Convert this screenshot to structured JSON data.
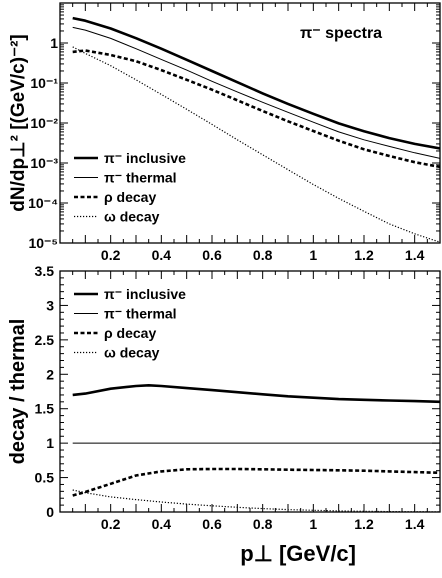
{
  "chart_data": [
    {
      "type": "line",
      "annotation": "π⁻ spectra",
      "xlabel": "",
      "ylabel": "dN/dp⊥² [(GeV/c)⁻²]",
      "xlim": [
        0.0,
        1.5
      ],
      "ylim": [
        1e-05,
        10
      ],
      "yscale": "log",
      "x_ticks": [
        "0.2",
        "0.4",
        "0.6",
        "0.8",
        "1",
        "1.2",
        "1.4"
      ],
      "y_ticks": [
        "10⁻⁵",
        "10⁻⁴",
        "10⁻³",
        "10⁻²",
        "10⁻¹",
        "1"
      ],
      "legend_position": "bottom-left",
      "series": [
        {
          "name": "π⁻ inclusive",
          "style": "thick-solid",
          "x": [
            0.05,
            0.1,
            0.2,
            0.3,
            0.4,
            0.5,
            0.6,
            0.7,
            0.8,
            0.9,
            1.0,
            1.1,
            1.2,
            1.3,
            1.4,
            1.5
          ],
          "y": [
            4.2,
            3.6,
            2.3,
            1.32,
            0.72,
            0.38,
            0.2,
            0.105,
            0.055,
            0.03,
            0.017,
            0.0098,
            0.0062,
            0.0042,
            0.003,
            0.0023
          ]
        },
        {
          "name": "π⁻ thermal",
          "style": "thin-solid",
          "x": [
            0.05,
            0.1,
            0.2,
            0.3,
            0.4,
            0.5,
            0.6,
            0.7,
            0.8,
            0.9,
            1.0,
            1.1,
            1.2,
            1.3,
            1.4,
            1.5
          ],
          "y": [
            2.45,
            2.1,
            1.3,
            0.72,
            0.39,
            0.21,
            0.11,
            0.06,
            0.033,
            0.0185,
            0.0105,
            0.006,
            0.0038,
            0.0026,
            0.0018,
            0.0013
          ]
        },
        {
          "name": "ρ decay",
          "style": "thick-dashed",
          "x": [
            0.05,
            0.1,
            0.2,
            0.3,
            0.4,
            0.5,
            0.6,
            0.7,
            0.8,
            0.9,
            1.0,
            1.1,
            1.2,
            1.3,
            1.4,
            1.5
          ],
          "y": [
            0.6,
            0.65,
            0.5,
            0.35,
            0.21,
            0.12,
            0.068,
            0.037,
            0.02,
            0.011,
            0.0063,
            0.0036,
            0.0022,
            0.0015,
            0.00105,
            0.0008
          ]
        },
        {
          "name": "ω decay",
          "style": "thin-dotted",
          "x": [
            0.05,
            0.1,
            0.2,
            0.3,
            0.4,
            0.5,
            0.6,
            0.7,
            0.8,
            0.9,
            1.0,
            1.1,
            1.2,
            1.3,
            1.4,
            1.5
          ],
          "y": [
            0.8,
            0.55,
            0.27,
            0.12,
            0.052,
            0.022,
            0.0092,
            0.0038,
            0.0016,
            0.00068,
            0.00029,
            0.00013,
            6.2e-05,
            3e-05,
            1.7e-05,
            1.05e-05
          ]
        }
      ]
    },
    {
      "type": "line",
      "xlabel": "p⊥ [GeV/c]",
      "ylabel": "decay / thermal",
      "xlim": [
        0.0,
        1.5
      ],
      "ylim": [
        0,
        3.5
      ],
      "yscale": "linear",
      "x_ticks": [
        "0.2",
        "0.4",
        "0.6",
        "0.8",
        "1",
        "1.2",
        "1.4"
      ],
      "y_ticks": [
        "0",
        "0.5",
        "1",
        "1.5",
        "2",
        "2.5",
        "3",
        "3.5"
      ],
      "legend_position": "top-left",
      "series": [
        {
          "name": "π⁻ inclusive",
          "style": "thick-solid",
          "x": [
            0.05,
            0.1,
            0.2,
            0.3,
            0.35,
            0.4,
            0.5,
            0.6,
            0.7,
            0.8,
            0.9,
            1.0,
            1.1,
            1.2,
            1.3,
            1.4,
            1.5
          ],
          "y": [
            1.7,
            1.72,
            1.79,
            1.83,
            1.84,
            1.83,
            1.8,
            1.77,
            1.74,
            1.71,
            1.68,
            1.66,
            1.64,
            1.63,
            1.62,
            1.61,
            1.6
          ]
        },
        {
          "name": "π⁻ thermal",
          "style": "thin-solid",
          "x": [
            0.05,
            1.5
          ],
          "y": [
            1.0,
            1.0
          ]
        },
        {
          "name": "ρ decay",
          "style": "thick-dashed",
          "x": [
            0.05,
            0.1,
            0.2,
            0.3,
            0.4,
            0.5,
            0.6,
            0.7,
            0.8,
            0.9,
            1.0,
            1.1,
            1.2,
            1.3,
            1.4,
            1.5
          ],
          "y": [
            0.24,
            0.29,
            0.41,
            0.53,
            0.59,
            0.62,
            0.625,
            0.625,
            0.62,
            0.615,
            0.61,
            0.605,
            0.6,
            0.59,
            0.58,
            0.57
          ]
        },
        {
          "name": "ω decay",
          "style": "thin-dotted",
          "x": [
            0.05,
            0.1,
            0.2,
            0.3,
            0.4,
            0.5,
            0.6,
            0.7,
            0.8,
            0.9,
            1.0,
            1.1,
            1.2,
            1.3,
            1.4,
            1.5
          ],
          "y": [
            0.32,
            0.28,
            0.22,
            0.18,
            0.145,
            0.115,
            0.09,
            0.068,
            0.05,
            0.035,
            0.024,
            0.016,
            0.01,
            0.006,
            0.004,
            0.002
          ]
        }
      ]
    }
  ]
}
